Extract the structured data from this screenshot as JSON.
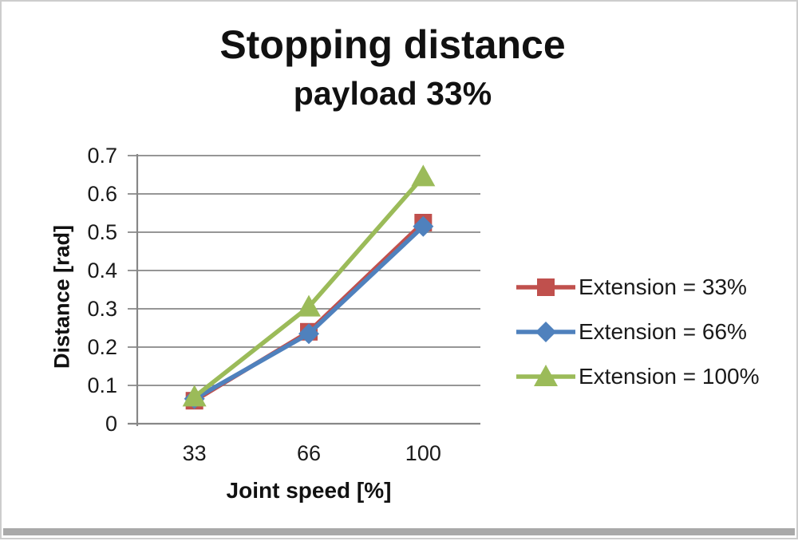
{
  "page": {
    "background": "#ffffff",
    "frame_border_color": "#cdcdcd",
    "bottom_bar_color": "#a9a9a9",
    "text_color": "#111111"
  },
  "chart_data": {
    "type": "line",
    "title": "Stopping distance",
    "subtitle": "payload 33%",
    "xlabel": "Joint speed [%]",
    "ylabel": "Distance [rad]",
    "categories": [
      "33",
      "66",
      "100"
    ],
    "y_ticks": [
      "0",
      "0.1",
      "0.2",
      "0.3",
      "0.4",
      "0.5",
      "0.6",
      "0.7"
    ],
    "ylim": [
      0,
      0.7
    ],
    "grid": true,
    "legend_position": "right",
    "axis_color": "#878787",
    "series": [
      {
        "name": "Extension = 33%",
        "color": "#C0504D",
        "marker": "square",
        "values": [
          0.06,
          0.24,
          0.525
        ]
      },
      {
        "name": "Extension = 66%",
        "color": "#4F81BD",
        "marker": "diamond",
        "values": [
          0.065,
          0.235,
          0.515
        ]
      },
      {
        "name": "Extension = 100%",
        "color": "#9BBB59",
        "marker": "triangle",
        "values": [
          0.07,
          0.305,
          0.645
        ]
      }
    ]
  }
}
